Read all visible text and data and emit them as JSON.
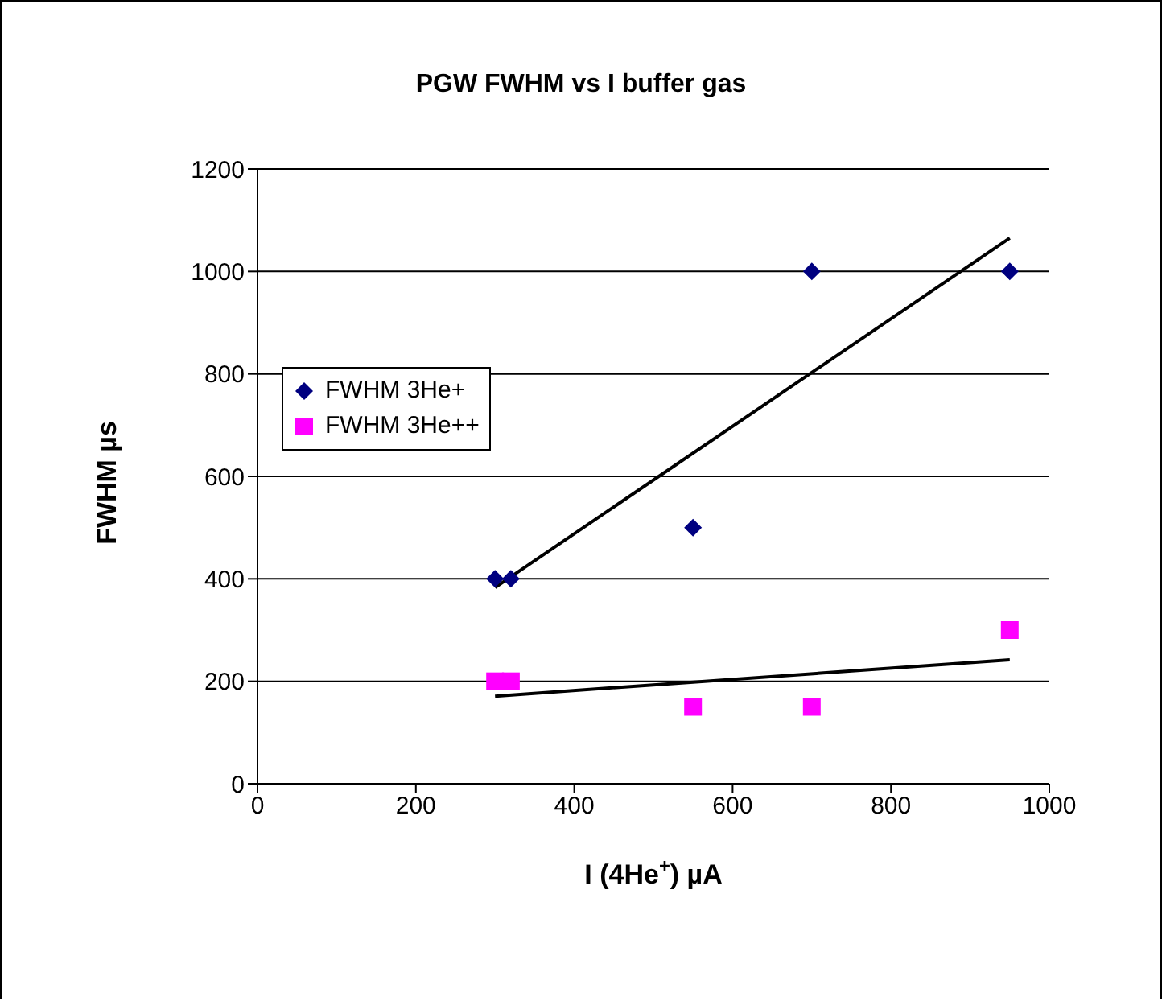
{
  "chart_data": {
    "type": "scatter",
    "title": "PGW FWHM vs I buffer gas",
    "xlabel": "I (4He$^{+}$)   µA",
    "ylabel": "FWHM    µs",
    "xlim": [
      0,
      1000
    ],
    "xticks": [
      0,
      200,
      400,
      600,
      800,
      1000
    ],
    "ylim": [
      0,
      1200
    ],
    "yticks": [
      0,
      200,
      400,
      600,
      800,
      1000,
      1200
    ],
    "grid": "y",
    "legend": "left",
    "series": [
      {
        "name": "FWHM 3He+",
        "color": "#000080",
        "marker": "diamond",
        "x": [
          300,
          320,
          550,
          700,
          950
        ],
        "values": [
          400,
          400,
          500,
          1000,
          1000
        ]
      },
      {
        "name": "FWHM 3He++",
        "color": "#ff00ff",
        "marker": "square",
        "x": [
          300,
          320,
          550,
          700,
          950
        ],
        "values": [
          200,
          200,
          150,
          150,
          300
        ]
      },
      {
        "type": "line",
        "color": "#000000",
        "marker": "none",
        "x": [
          300,
          950
        ],
        "values": [
          383,
          1065
        ]
      },
      {
        "type": "line",
        "color": "#000000",
        "marker": "none",
        "x": [
          300,
          950
        ],
        "values": [
          171,
          242
        ]
      }
    ]
  }
}
